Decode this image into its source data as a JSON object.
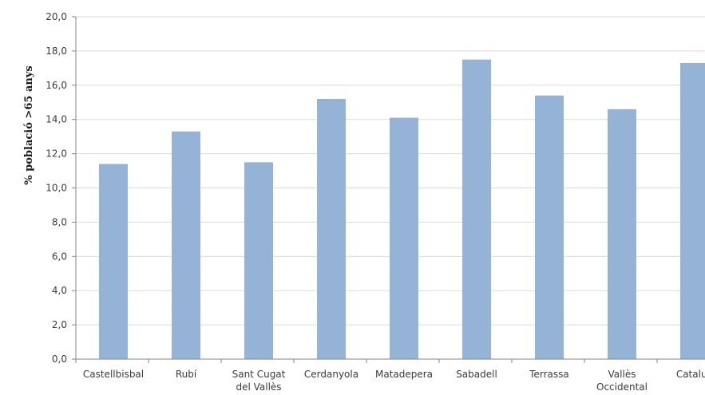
{
  "chart_data": {
    "type": "bar",
    "title": "",
    "xlabel": "",
    "ylabel": "% població >65 anys",
    "ylim": [
      0,
      20
    ],
    "ytick_step": 2,
    "ytick_labels": [
      "0,0",
      "2,0",
      "4,0",
      "6,0",
      "8,0",
      "10,0",
      "12,0",
      "14,0",
      "16,0",
      "18,0",
      "20,0"
    ],
    "grid": true,
    "legend": "none",
    "categories": [
      [
        "Castellbisbal"
      ],
      [
        "Rubí"
      ],
      [
        "Sant Cugat",
        "del Vallès"
      ],
      [
        "Cerdanyola"
      ],
      [
        "Matadepera"
      ],
      [
        "Sabadell"
      ],
      [
        "Terrassa"
      ],
      [
        "Vallès",
        "Occidental"
      ],
      [
        "Catalun"
      ]
    ],
    "values": [
      11.4,
      13.3,
      11.5,
      15.2,
      14.1,
      17.5,
      15.4,
      14.6,
      17.3
    ],
    "colors": {
      "bar": "#95b3d7",
      "grid": "#d9d9d9",
      "axis": "#868686"
    }
  }
}
